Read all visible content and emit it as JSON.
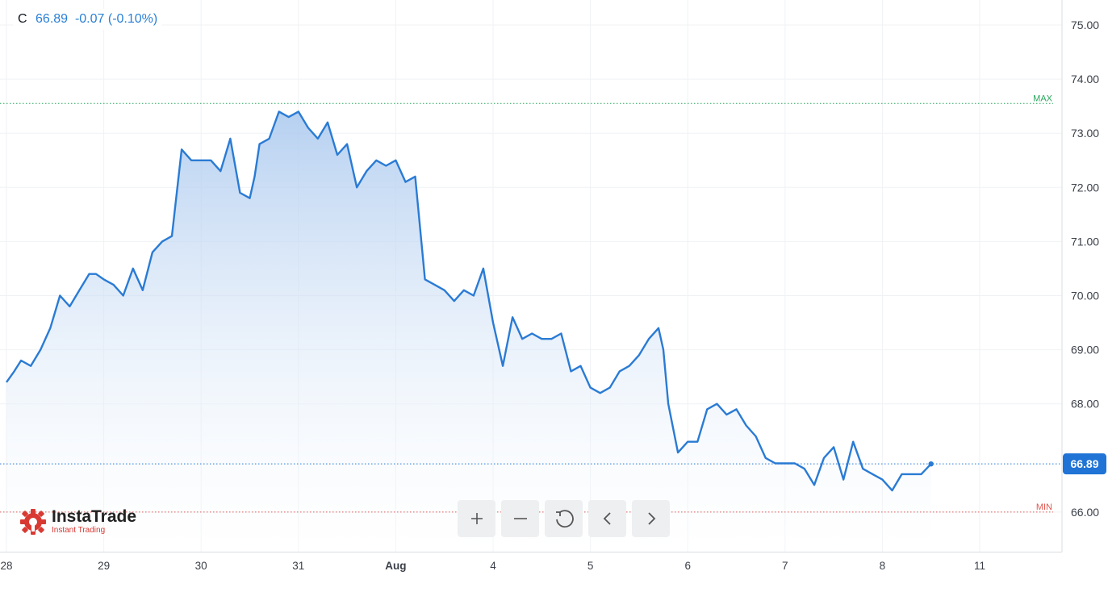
{
  "legend": {
    "symbol": "C",
    "value": "66.89",
    "change": "-0.07",
    "change_pct": "(-0.10%)"
  },
  "logo": {
    "name": "InstaTrade",
    "tagline": "Instant Trading"
  },
  "toolbar": [
    {
      "name": "zoom-in-button",
      "icon": "plus-icon"
    },
    {
      "name": "zoom-out-button",
      "icon": "minus-icon"
    },
    {
      "name": "reset-button",
      "icon": "reset-icon"
    },
    {
      "name": "scroll-left-button",
      "icon": "chevron-left-icon"
    },
    {
      "name": "scroll-right-button",
      "icon": "chevron-right-icon"
    }
  ],
  "colors": {
    "line": "#2a7bd4",
    "max_line": "#26a65b",
    "min_line": "#e0574f",
    "last_price_bg": "#1f74d6",
    "grid": "#f0f2f5"
  },
  "chart_data": {
    "type": "area",
    "y_ticks": [
      "75.00",
      "74.00",
      "73.00",
      "72.00",
      "71.00",
      "70.00",
      "69.00",
      "68.00",
      "66.00"
    ],
    "ylim": [
      65.3,
      75.2
    ],
    "x_ticks": [
      "28",
      "29",
      "30",
      "31",
      "Aug",
      "4",
      "5",
      "6",
      "7",
      "8",
      "11"
    ],
    "max_label": "MAX",
    "max_value": 73.55,
    "min_label": "MIN",
    "min_value": 66.0,
    "last_price_label": "66.89",
    "last_price": 66.89,
    "grid": true,
    "series": [
      {
        "x": [
          0,
          0.08,
          0.15,
          0.25,
          0.35,
          0.45,
          0.55,
          0.65,
          0.75,
          0.85,
          0.92,
          1.0,
          1.1,
          1.2,
          1.3,
          1.4,
          1.5,
          1.6,
          1.7,
          1.8,
          1.9,
          2.0,
          2.1,
          2.2,
          2.3,
          2.4,
          2.5,
          2.55,
          2.6,
          2.7,
          2.8,
          2.9,
          3.0,
          3.1,
          3.2,
          3.3,
          3.4,
          3.5,
          3.6,
          3.7,
          3.8,
          3.9,
          4.0,
          4.1,
          4.2,
          4.3,
          4.4,
          4.5,
          4.6,
          4.7,
          4.8,
          4.9,
          5.0,
          5.1,
          5.2,
          5.3,
          5.4,
          5.5,
          5.6,
          5.7,
          5.8,
          5.9,
          6.0,
          6.1,
          6.2,
          6.3,
          6.4,
          6.5,
          6.6,
          6.7,
          6.75,
          6.8,
          6.9,
          7.0,
          7.1,
          7.2,
          7.3,
          7.4,
          7.5,
          7.6,
          7.7,
          7.8,
          7.9,
          8.0,
          8.1,
          8.2,
          8.3,
          8.4,
          8.5,
          8.6,
          8.7,
          8.8,
          8.9,
          9.0,
          9.1,
          9.2,
          9.3,
          9.4,
          9.5
        ],
        "y": [
          68.4,
          68.6,
          68.8,
          68.7,
          69.0,
          69.4,
          70.0,
          69.8,
          70.1,
          70.4,
          70.4,
          70.3,
          70.2,
          70.0,
          70.5,
          70.1,
          70.8,
          71.0,
          71.1,
          72.7,
          72.5,
          72.5,
          72.5,
          72.3,
          72.9,
          71.9,
          71.8,
          72.2,
          72.8,
          72.9,
          73.4,
          73.3,
          73.4,
          73.1,
          72.9,
          73.2,
          72.6,
          72.8,
          72.0,
          72.3,
          72.5,
          72.4,
          72.5,
          72.1,
          72.2,
          70.3,
          70.2,
          70.1,
          69.9,
          70.1,
          70.0,
          70.5,
          69.5,
          68.7,
          69.6,
          69.2,
          69.3,
          69.2,
          69.2,
          69.3,
          68.6,
          68.7,
          68.3,
          68.2,
          68.3,
          68.6,
          68.7,
          68.9,
          69.2,
          69.4,
          69.0,
          68.0,
          67.1,
          67.3,
          67.3,
          67.9,
          68.0,
          67.8,
          67.9,
          67.6,
          67.4,
          67.0,
          66.9,
          66.9,
          66.9,
          66.8,
          66.5,
          67.0,
          67.2,
          66.6,
          67.3,
          66.8,
          66.7,
          66.6,
          66.4,
          66.7,
          66.7,
          66.7,
          66.89
        ]
      }
    ]
  }
}
